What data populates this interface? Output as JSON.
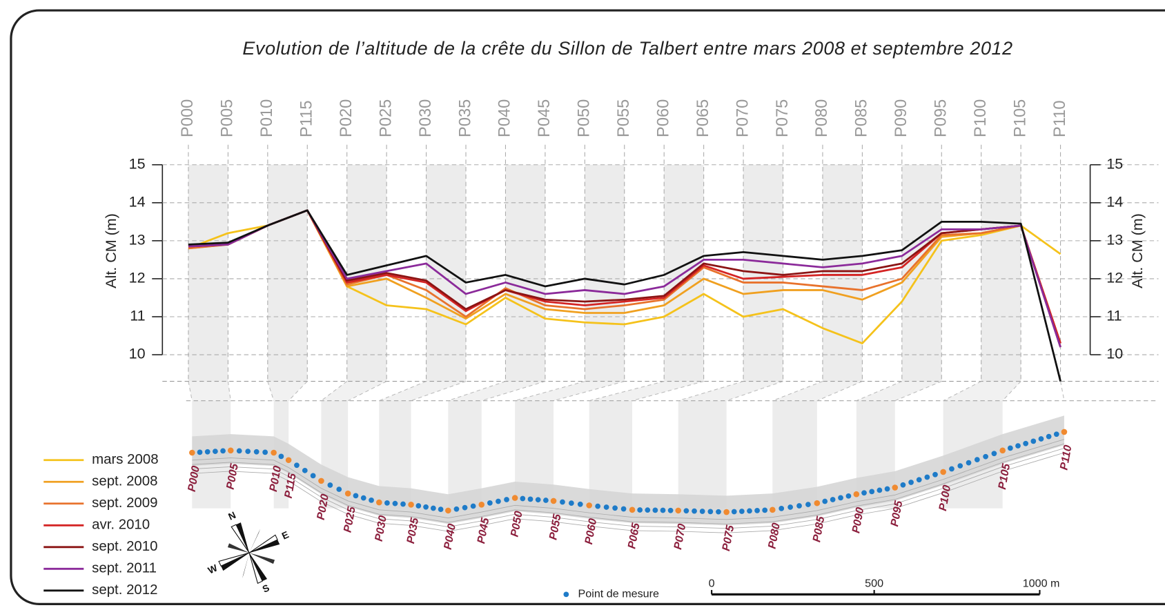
{
  "chart_data": {
    "type": "line",
    "title": "Evolution de l’altitude de la crête du Sillon de Talbert entre mars 2008 et septembre 2012",
    "ylabel": "Alt. CM (m)",
    "y2label": "Alt. CM (m)",
    "categories": [
      "P000",
      "P005",
      "P010",
      "P115",
      "P020",
      "P025",
      "P030",
      "P035",
      "P040",
      "P045",
      "P050",
      "P055",
      "P060",
      "P065",
      "P070",
      "P075",
      "P080",
      "P085",
      "P090",
      "P095",
      "P100",
      "P105",
      "P110"
    ],
    "ylim": [
      9.3,
      15
    ],
    "yticks": [
      10,
      11,
      12,
      13,
      14,
      15
    ],
    "y2lim": [
      9.3,
      15
    ],
    "y2ticks": [
      10,
      11,
      12,
      13,
      14,
      15
    ],
    "grid": true,
    "legend": "bottom-left",
    "series": [
      {
        "name": "mars 2008",
        "color": "#f5c21b",
        "values": [
          12.8,
          13.2,
          13.4,
          13.8,
          11.8,
          11.3,
          11.2,
          10.8,
          11.5,
          10.95,
          10.85,
          10.8,
          11.0,
          11.6,
          11.0,
          11.2,
          10.7,
          10.3,
          11.4,
          13.0,
          13.15,
          13.4,
          12.65
        ]
      },
      {
        "name": "sept. 2008",
        "color": "#f0a020",
        "values": [
          12.8,
          12.9,
          13.4,
          13.8,
          11.8,
          12.0,
          11.5,
          10.95,
          11.6,
          11.2,
          11.1,
          11.1,
          11.3,
          12.0,
          11.6,
          11.7,
          11.7,
          11.45,
          11.9,
          13.1,
          13.2,
          13.4,
          10.3
        ]
      },
      {
        "name": "sept. 2009",
        "color": "#e8722c",
        "values": [
          12.8,
          12.9,
          13.4,
          13.8,
          11.85,
          12.1,
          11.7,
          11.0,
          11.75,
          11.3,
          11.2,
          11.3,
          11.45,
          12.3,
          11.9,
          11.9,
          11.8,
          11.7,
          12.0,
          13.15,
          13.2,
          13.4,
          10.3
        ]
      },
      {
        "name": "avr. 2010",
        "color": "#d42424",
        "values": [
          12.85,
          12.9,
          13.4,
          13.8,
          11.9,
          12.1,
          11.9,
          11.15,
          11.7,
          11.4,
          11.3,
          11.4,
          11.5,
          12.35,
          12.0,
          12.05,
          12.1,
          12.1,
          12.3,
          13.2,
          13.3,
          13.4,
          10.3
        ]
      },
      {
        "name": "sept. 2010",
        "color": "#8b1414",
        "values": [
          12.85,
          12.9,
          13.4,
          13.8,
          11.95,
          12.15,
          11.95,
          11.2,
          11.7,
          11.45,
          11.4,
          11.45,
          11.55,
          12.4,
          12.2,
          12.1,
          12.2,
          12.2,
          12.4,
          13.2,
          13.3,
          13.4,
          10.2
        ]
      },
      {
        "name": "sept. 2011",
        "color": "#8b2a9a",
        "values": [
          12.85,
          12.9,
          13.4,
          13.8,
          12.0,
          12.2,
          12.4,
          11.6,
          11.9,
          11.6,
          11.7,
          11.6,
          11.8,
          12.5,
          12.5,
          12.4,
          12.3,
          12.4,
          12.6,
          13.3,
          13.3,
          13.4,
          10.2
        ]
      },
      {
        "name": "sept. 2012",
        "color": "#111111",
        "values": [
          12.9,
          12.95,
          13.4,
          13.8,
          12.1,
          12.35,
          12.6,
          11.9,
          12.1,
          11.8,
          12.0,
          11.85,
          12.1,
          12.6,
          12.7,
          12.6,
          12.5,
          12.6,
          12.75,
          13.5,
          13.5,
          13.45,
          9.3
        ]
      }
    ]
  },
  "map": {
    "legend": "Point de mesure",
    "scale_labels": [
      "0",
      "500",
      "1000 m"
    ],
    "compass": [
      "N",
      "E",
      "S",
      "W"
    ]
  }
}
